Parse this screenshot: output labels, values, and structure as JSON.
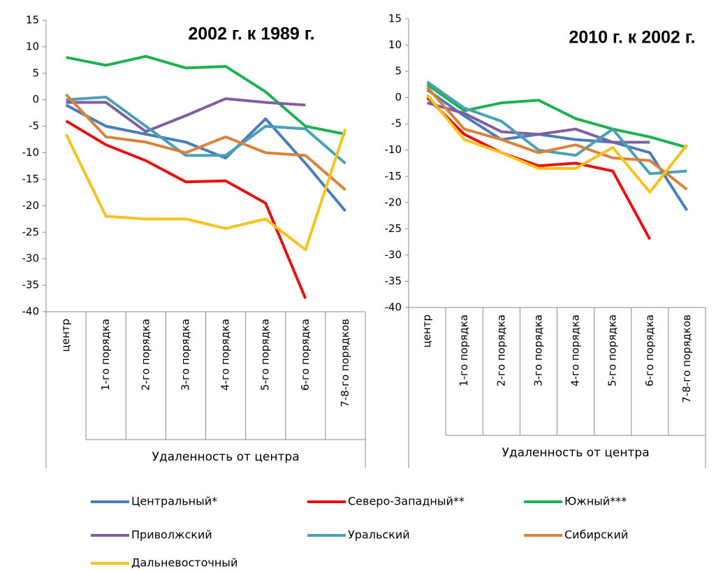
{
  "chart_data": [
    {
      "type": "line",
      "title": "2002 г. к 1989 г.",
      "xlabel": "Удаленность от центра",
      "categories": [
        "центр",
        "1-го порядка",
        "2-го порядка",
        "3-го порядка",
        "4-го порядка",
        "5-го порядка",
        "6-го порядка",
        "7-8-го порядков"
      ],
      "ylim": [
        -40,
        15
      ],
      "yticks": [
        15,
        10,
        5,
        0,
        -5,
        -10,
        -15,
        -20,
        -25,
        -30,
        -35,
        -40
      ],
      "series": [
        {
          "name": "Центральный*",
          "color": "#4a7ebb",
          "values": [
            -1,
            -5,
            -6.5,
            -8,
            -11,
            -3.6,
            -12,
            -21
          ]
        },
        {
          "name": "Северо-Западный**",
          "color": "#e81010",
          "values": [
            -4,
            -8.5,
            -11.5,
            -15.5,
            -15.3,
            -19.5,
            -37.5,
            null
          ]
        },
        {
          "name": "Южный***",
          "color": "#1db14f",
          "values": [
            8,
            6.5,
            8.2,
            6,
            6.3,
            1.5,
            -5,
            -6.5
          ]
        },
        {
          "name": "Приволжский",
          "color": "#7f5fa0",
          "values": [
            -0.5,
            -0.5,
            -6,
            -3,
            0.2,
            -0.5,
            -1,
            null
          ]
        },
        {
          "name": "Уральский",
          "color": "#4aa0b5",
          "values": [
            0,
            0.5,
            -5,
            -10.5,
            -10.5,
            -5,
            -5.5,
            -12
          ]
        },
        {
          "name": "Сибирский",
          "color": "#d8823b",
          "values": [
            1,
            -7,
            -8,
            -10,
            -7,
            -10,
            -10.5,
            -17
          ]
        },
        {
          "name": "Дальневосточный",
          "color": "#f8c21c",
          "values": [
            -6.5,
            -22,
            -22.5,
            -22.5,
            -24.3,
            -22.5,
            -28.3,
            -5.5
          ]
        }
      ]
    },
    {
      "type": "line",
      "title": "2010 г. к 2002 г.",
      "xlabel": "Удаленность от центра",
      "categories": [
        "центр",
        "1-го порядка",
        "2-го порядка",
        "3-го порядка",
        "4-го порядка",
        "5-го порядка",
        "6-го порядка",
        "7-8-го порядков"
      ],
      "ylim": [
        -40,
        15
      ],
      "yticks": [
        15,
        10,
        5,
        0,
        -5,
        -10,
        -15,
        -20,
        -25,
        -30,
        -35,
        -40
      ],
      "series": [
        {
          "name": "Центральный*",
          "color": "#4a7ebb",
          "values": [
            1.5,
            -3.5,
            -8,
            -7,
            -8,
            -8.5,
            -10.5,
            -21.5
          ]
        },
        {
          "name": "Северо-Западный**",
          "color": "#e81010",
          "values": [
            0,
            -7,
            -10.5,
            -13,
            -12.5,
            -14,
            -27,
            null
          ]
        },
        {
          "name": "Южный***",
          "color": "#1db14f",
          "values": [
            2.5,
            -2.5,
            -1,
            -0.5,
            -4,
            -6,
            -7.5,
            -9.5
          ]
        },
        {
          "name": "Приволжский",
          "color": "#7f5fa0",
          "values": [
            -1,
            -3,
            -6.5,
            -7,
            -6,
            -8.5,
            -8.5,
            null
          ]
        },
        {
          "name": "Уральский",
          "color": "#4aa0b5",
          "values": [
            3,
            -2,
            -4.5,
            -10,
            -11,
            -6,
            -14.5,
            -14
          ]
        },
        {
          "name": "Сибирский",
          "color": "#d8823b",
          "values": [
            2,
            -6,
            -8,
            -10.5,
            -9,
            -11.5,
            -12,
            -17.5
          ]
        },
        {
          "name": "Дальневосточный",
          "color": "#f8c21c",
          "values": [
            0.5,
            -8,
            -10.5,
            -13.5,
            -13.5,
            -9.5,
            -18,
            -9
          ]
        }
      ]
    }
  ]
}
